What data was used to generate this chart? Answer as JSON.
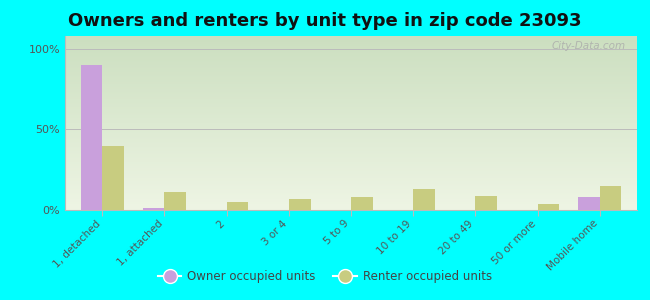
{
  "title": "Owners and renters by unit type in zip code 23093",
  "categories": [
    "1, detached",
    "1, attached",
    "2",
    "3 or 4",
    "5 to 9",
    "10 to 19",
    "20 to 49",
    "50 or more",
    "Mobile home"
  ],
  "owner_values": [
    90,
    1,
    0,
    0,
    0,
    0,
    0,
    0,
    8
  ],
  "renter_values": [
    40,
    11,
    5,
    7,
    8,
    13,
    9,
    4,
    15
  ],
  "owner_color": "#c9a0dc",
  "renter_color": "#c8cc80",
  "background_color": "#00ffff",
  "plot_bg_top": "#ccdfc0",
  "plot_bg_bottom": "#eef5e4",
  "title_fontsize": 13,
  "ylabel_ticks": [
    "0%",
    "50%",
    "100%"
  ],
  "yticks": [
    0,
    50,
    100
  ],
  "ylim": [
    0,
    108
  ],
  "bar_width": 0.35,
  "legend_owner": "Owner occupied units",
  "legend_renter": "Renter occupied units",
  "watermark": "City-Data.com"
}
